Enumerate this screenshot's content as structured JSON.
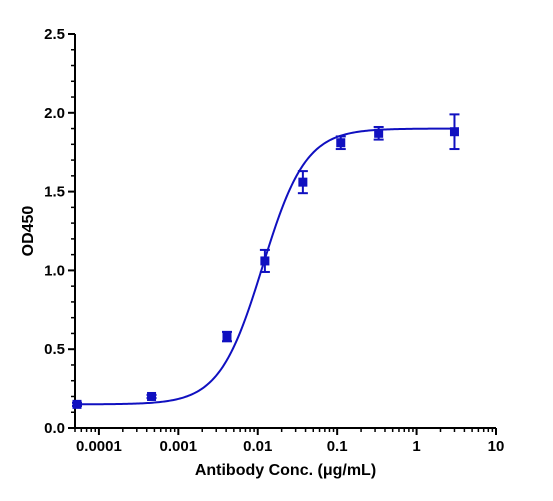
{
  "chart_data": {
    "type": "scatter",
    "title": "",
    "xlabel": "Antibody Conc. (μg/mL)",
    "ylabel": "OD450",
    "x_scale": "log",
    "xlim": [
      5e-05,
      10
    ],
    "ylim": [
      0,
      2.5
    ],
    "x_ticks": [
      {
        "value": 0.0001,
        "label": "0.0001"
      },
      {
        "value": 0.001,
        "label": "0.001"
      },
      {
        "value": 0.01,
        "label": "0.01"
      },
      {
        "value": 0.1,
        "label": "0.1"
      },
      {
        "value": 1,
        "label": "1"
      },
      {
        "value": 10,
        "label": "10"
      }
    ],
    "y_ticks": [
      {
        "value": 0.0,
        "label": "0.0"
      },
      {
        "value": 0.5,
        "label": "0.5"
      },
      {
        "value": 1.0,
        "label": "1.0"
      },
      {
        "value": 1.5,
        "label": "1.5"
      },
      {
        "value": 2.0,
        "label": "2.0"
      },
      {
        "value": 2.5,
        "label": "2.5"
      }
    ],
    "grid": false,
    "legend": "none",
    "color": "#1010c0",
    "series": [
      {
        "marker": "square",
        "points": [
          {
            "x": 5.3e-05,
            "y": 0.15,
            "err": 0.01
          },
          {
            "x": 0.00046,
            "y": 0.2,
            "err": 0.01
          },
          {
            "x": 0.0041,
            "y": 0.58,
            "err": 0.03
          },
          {
            "x": 0.0123,
            "y": 1.06,
            "err": 0.07
          },
          {
            "x": 0.037,
            "y": 1.56,
            "err": 0.07
          },
          {
            "x": 0.111,
            "y": 1.81,
            "err": 0.04
          },
          {
            "x": 0.333,
            "y": 1.87,
            "err": 0.04
          },
          {
            "x": 3.0,
            "y": 1.88,
            "err": 0.11
          }
        ],
        "fit": {
          "model": "4PL",
          "bottom": 0.15,
          "top": 1.9,
          "ec50": 0.0115,
          "hill": 1.6
        }
      }
    ]
  }
}
